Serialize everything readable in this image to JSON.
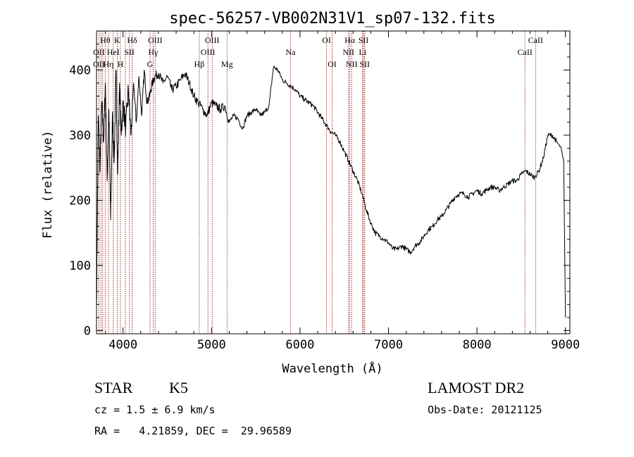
{
  "chart_data": {
    "type": "line",
    "title": "spec-56257-VB002N31V1_sp07-132.fits",
    "xlabel": "Wavelength (Å)",
    "ylabel": "Flux (relative)",
    "xlim": [
      3700,
      9050
    ],
    "ylim": [
      -5,
      460
    ],
    "xticks": [
      4000,
      5000,
      6000,
      7000,
      8000,
      9000
    ],
    "yticks": [
      0,
      100,
      200,
      300,
      400
    ],
    "grid": false,
    "legend": "none",
    "series": [
      {
        "x": [
          3700,
          3720,
          3740,
          3760,
          3780,
          3800,
          3820,
          3840,
          3860,
          3880,
          3900,
          3920,
          3940,
          3960,
          3980,
          4000,
          4030,
          4060,
          4090,
          4120,
          4150,
          4180,
          4210,
          4240,
          4270,
          4300,
          4330,
          4360,
          4400,
          4450,
          4500,
          4550,
          4600,
          4650,
          4700,
          4750,
          4800,
          4850,
          4900,
          4950,
          5000,
          5050,
          5100,
          5150,
          5200,
          5250,
          5300,
          5350,
          5400,
          5450,
          5500,
          5550,
          5600,
          5650,
          5700,
          5750,
          5800,
          5850,
          5900,
          5950,
          6000,
          6050,
          6100,
          6150,
          6200,
          6250,
          6300,
          6350,
          6400,
          6450,
          6500,
          6550,
          6600,
          6650,
          6700,
          6750,
          6800,
          6850,
          6900,
          6950,
          7000,
          7050,
          7100,
          7150,
          7200,
          7250,
          7300,
          7350,
          7400,
          7450,
          7500,
          7550,
          7600,
          7650,
          7700,
          7750,
          7800,
          7850,
          7900,
          7950,
          8000,
          8050,
          8100,
          8150,
          8200,
          8250,
          8300,
          8350,
          8400,
          8450,
          8500,
          8550,
          8600,
          8650,
          8700,
          8750,
          8800,
          8850,
          8900,
          8950,
          8980,
          9000
        ],
        "y": [
          40,
          330,
          250,
          350,
          290,
          380,
          230,
          340,
          170,
          330,
          260,
          400,
          240,
          380,
          300,
          350,
          310,
          370,
          300,
          380,
          320,
          390,
          330,
          400,
          350,
          360,
          380,
          390,
          395,
          380,
          390,
          370,
          375,
          385,
          395,
          380,
          360,
          350,
          340,
          330,
          350,
          345,
          340,
          345,
          320,
          330,
          325,
          310,
          330,
          335,
          340,
          330,
          335,
          345,
          405,
          400,
          385,
          380,
          375,
          370,
          360,
          355,
          350,
          345,
          335,
          325,
          315,
          305,
          300,
          290,
          275,
          260,
          245,
          230,
          210,
          185,
          165,
          150,
          145,
          140,
          135,
          125,
          125,
          130,
          125,
          120,
          130,
          135,
          145,
          155,
          160,
          170,
          175,
          185,
          195,
          205,
          210,
          210,
          205,
          210,
          215,
          210,
          215,
          220,
          220,
          215,
          220,
          225,
          230,
          230,
          240,
          245,
          240,
          235,
          245,
          265,
          300,
          300,
          290,
          280,
          260,
          20
        ]
      }
    ],
    "annotations": {
      "line_wavelengths": [
        3727,
        3750,
        3770,
        3798,
        3835,
        3889,
        3934,
        3970,
        4026,
        4072,
        4102,
        4305,
        4341,
        4363,
        4861,
        4959,
        5007,
        5175,
        5893,
        6300,
        6363,
        6548,
        6563,
        6583,
        6707,
        6717,
        6731,
        8542,
        8662
      ],
      "labels": [
        {
          "text": "Hθ",
          "x": 3798,
          "row": 1
        },
        {
          "text": "K",
          "x": 3934,
          "row": 1
        },
        {
          "text": "Hδ",
          "x": 4102,
          "row": 1
        },
        {
          "text": "OIII",
          "x": 4363,
          "row": 1
        },
        {
          "text": "OIII",
          "x": 5007,
          "row": 1
        },
        {
          "text": "OI",
          "x": 6300,
          "row": 1
        },
        {
          "text": "Hα",
          "x": 6563,
          "row": 1
        },
        {
          "text": "SII",
          "x": 6717,
          "row": 1
        },
        {
          "text": "CaII",
          "x": 8662,
          "row": 1
        },
        {
          "text": "OII",
          "x": 3727,
          "row": 2
        },
        {
          "text": "HeI",
          "x": 3889,
          "row": 2
        },
        {
          "text": "SII",
          "x": 4072,
          "row": 2
        },
        {
          "text": "Hγ",
          "x": 4341,
          "row": 2
        },
        {
          "text": "OIII",
          "x": 4959,
          "row": 2
        },
        {
          "text": "Na",
          "x": 5893,
          "row": 2
        },
        {
          "text": "NII",
          "x": 6548,
          "row": 2
        },
        {
          "text": "Li",
          "x": 6707,
          "row": 2
        },
        {
          "text": "CaII",
          "x": 8542,
          "row": 2
        },
        {
          "text": "OII",
          "x": 3727,
          "row": 3
        },
        {
          "text": "Hη",
          "x": 3835,
          "row": 3
        },
        {
          "text": "H",
          "x": 3970,
          "row": 3
        },
        {
          "text": "G",
          "x": 4305,
          "row": 3
        },
        {
          "text": "Hβ",
          "x": 4861,
          "row": 3
        },
        {
          "text": "Mg",
          "x": 5175,
          "row": 3
        },
        {
          "text": "OI",
          "x": 6363,
          "row": 3
        },
        {
          "text": "NII",
          "x": 6583,
          "row": 3
        },
        {
          "text": "SII",
          "x": 6731,
          "row": 3
        }
      ]
    },
    "line_color": "#000000",
    "marker_color": "#8b0000"
  },
  "info": {
    "class": "STAR",
    "subclass": "K5",
    "survey": "LAMOST DR2",
    "cz": "cz = 1.5 ± 6.9 km/s",
    "obs_date": "Obs-Date: 20121125",
    "radec": "RA =   4.21859, DEC =  29.96589"
  }
}
